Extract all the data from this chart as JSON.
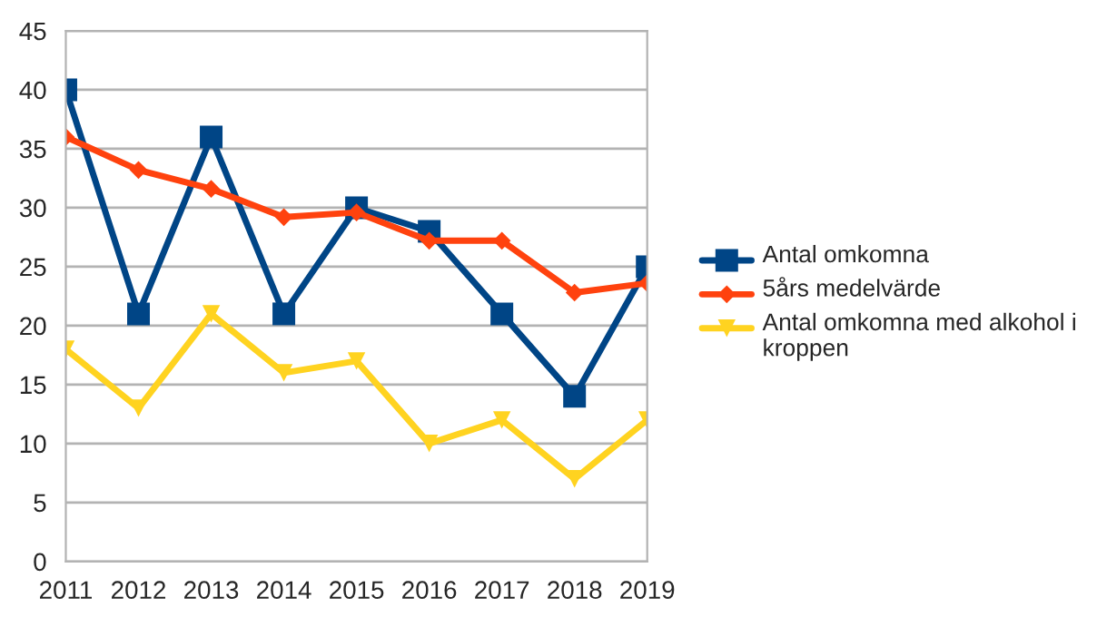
{
  "chart_data": {
    "type": "line",
    "categories": [
      "2011",
      "2012",
      "2013",
      "2014",
      "2015",
      "2016",
      "2017",
      "2018",
      "2019"
    ],
    "series": [
      {
        "name": "Antal omkomna",
        "color": "#004586",
        "marker": "square",
        "values": [
          40,
          21,
          36,
          21,
          30,
          28,
          21,
          14,
          25
        ]
      },
      {
        "name": "5års medelvärde",
        "color": "#ff420e",
        "marker": "diamond",
        "values": [
          36,
          33.2,
          31.6,
          29.2,
          29.6,
          27.2,
          27.2,
          22.8,
          23.6
        ]
      },
      {
        "name": "Antal omkomna med alkohol i kroppen",
        "color": "#ffd320",
        "marker": "triangle",
        "values": [
          18,
          13,
          21,
          16,
          17,
          10,
          12,
          7,
          12
        ]
      }
    ],
    "ylim": [
      0,
      45
    ],
    "yticks": [
      0,
      5,
      10,
      15,
      20,
      25,
      30,
      35,
      40,
      45
    ],
    "grid": "y",
    "legend": "right",
    "line_style": "solid"
  }
}
